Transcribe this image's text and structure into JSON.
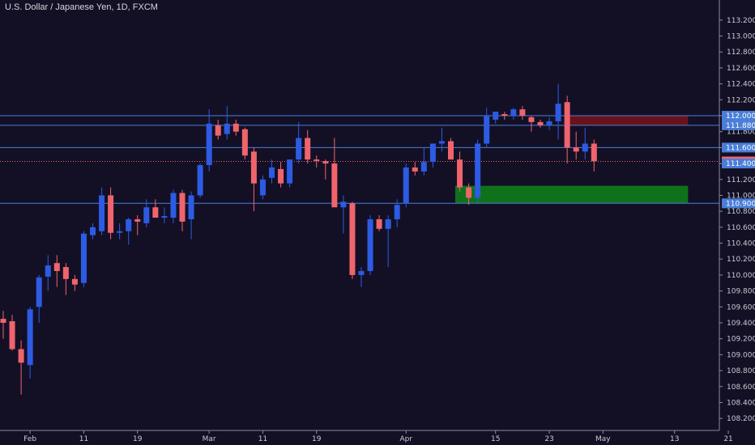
{
  "header": {
    "title": "U.S. Dollar / Japanese Yen, 1D, FXCM"
  },
  "colors": {
    "background": "#131026",
    "bullish": "#2d5be3",
    "bearish": "#f0646c",
    "level_line": "#4a7ed8",
    "resistance_zone": "#7a1219",
    "support_zone": "#0f7d1a",
    "axis_border": "#8a8da0",
    "current_price": "#f0646c"
  },
  "chart_data": {
    "type": "candlestick",
    "title": "U.S. Dollar / Japanese Yen, 1D, FXCM",
    "ylim": [
      108.1,
      113.3
    ],
    "price_ticks": [
      "113.200",
      "113.000",
      "112.800",
      "112.600",
      "112.400",
      "112.200",
      "112.000",
      "111.800",
      "111.600",
      "111.400",
      "111.200",
      "111.000",
      "110.800",
      "110.600",
      "110.400",
      "110.200",
      "110.000",
      "109.800",
      "109.600",
      "109.400",
      "109.200",
      "109.000",
      "108.800",
      "108.600",
      "108.400",
      "108.200"
    ],
    "time_ticks": [
      {
        "label": "Feb",
        "index": 3
      },
      {
        "label": "11",
        "index": 9
      },
      {
        "label": "19",
        "index": 15
      },
      {
        "label": "Mar",
        "index": 23
      },
      {
        "label": "11",
        "index": 29
      },
      {
        "label": "19",
        "index": 35
      },
      {
        "label": "Apr",
        "index": 45
      },
      {
        "label": "15",
        "index": 55
      },
      {
        "label": "23",
        "index": 61
      },
      {
        "label": "May",
        "index": 67
      },
      {
        "label": "13",
        "index": 75
      },
      {
        "label": "21",
        "index": 81
      }
    ],
    "candles": [
      {
        "o": 109.45,
        "h": 109.55,
        "l": 109.2,
        "c": 109.4
      },
      {
        "o": 109.42,
        "h": 109.5,
        "l": 109.05,
        "c": 109.07
      },
      {
        "o": 109.07,
        "h": 109.18,
        "l": 108.5,
        "c": 108.9
      },
      {
        "o": 108.87,
        "h": 109.6,
        "l": 108.7,
        "c": 109.57
      },
      {
        "o": 109.6,
        "h": 110.0,
        "l": 109.4,
        "c": 109.97
      },
      {
        "o": 109.98,
        "h": 110.25,
        "l": 109.8,
        "c": 110.12
      },
      {
        "o": 110.15,
        "h": 110.25,
        "l": 109.85,
        "c": 110.05
      },
      {
        "o": 110.1,
        "h": 110.15,
        "l": 109.75,
        "c": 109.95
      },
      {
        "o": 109.95,
        "h": 110.0,
        "l": 109.8,
        "c": 109.88
      },
      {
        "o": 109.9,
        "h": 110.55,
        "l": 109.85,
        "c": 110.52
      },
      {
        "o": 110.5,
        "h": 110.65,
        "l": 110.45,
        "c": 110.6
      },
      {
        "o": 110.55,
        "h": 111.1,
        "l": 110.5,
        "c": 111.0
      },
      {
        "o": 111.0,
        "h": 111.1,
        "l": 110.45,
        "c": 110.53
      },
      {
        "o": 110.53,
        "h": 110.65,
        "l": 110.45,
        "c": 110.55
      },
      {
        "o": 110.55,
        "h": 110.72,
        "l": 110.38,
        "c": 110.7
      },
      {
        "o": 110.7,
        "h": 110.75,
        "l": 110.5,
        "c": 110.67
      },
      {
        "o": 110.65,
        "h": 110.95,
        "l": 110.6,
        "c": 110.85
      },
      {
        "o": 110.85,
        "h": 110.95,
        "l": 110.75,
        "c": 110.72
      },
      {
        "o": 110.72,
        "h": 110.85,
        "l": 110.65,
        "c": 110.74
      },
      {
        "o": 110.72,
        "h": 111.07,
        "l": 110.65,
        "c": 111.03
      },
      {
        "o": 111.03,
        "h": 111.07,
        "l": 110.55,
        "c": 110.67
      },
      {
        "o": 110.7,
        "h": 111.05,
        "l": 110.45,
        "c": 111.0
      },
      {
        "o": 111.0,
        "h": 111.4,
        "l": 110.97,
        "c": 111.38
      },
      {
        "o": 111.38,
        "h": 112.08,
        "l": 111.3,
        "c": 111.9
      },
      {
        "o": 111.88,
        "h": 111.95,
        "l": 111.7,
        "c": 111.75
      },
      {
        "o": 111.77,
        "h": 112.12,
        "l": 111.7,
        "c": 111.9
      },
      {
        "o": 111.9,
        "h": 111.95,
        "l": 111.75,
        "c": 111.8
      },
      {
        "o": 111.83,
        "h": 111.85,
        "l": 111.45,
        "c": 111.5
      },
      {
        "o": 111.55,
        "h": 111.6,
        "l": 110.8,
        "c": 111.15
      },
      {
        "o": 111.0,
        "h": 111.25,
        "l": 110.95,
        "c": 111.2
      },
      {
        "o": 111.22,
        "h": 111.45,
        "l": 111.15,
        "c": 111.35
      },
      {
        "o": 111.33,
        "h": 111.42,
        "l": 111.1,
        "c": 111.15
      },
      {
        "o": 111.15,
        "h": 111.45,
        "l": 111.1,
        "c": 111.45
      },
      {
        "o": 111.45,
        "h": 111.92,
        "l": 111.4,
        "c": 111.72
      },
      {
        "o": 111.72,
        "h": 111.82,
        "l": 111.4,
        "c": 111.45
      },
      {
        "o": 111.45,
        "h": 111.5,
        "l": 111.35,
        "c": 111.43
      },
      {
        "o": 111.43,
        "h": 111.45,
        "l": 111.2,
        "c": 111.4
      },
      {
        "o": 111.4,
        "h": 111.72,
        "l": 110.9,
        "c": 110.85
      },
      {
        "o": 110.85,
        "h": 111.0,
        "l": 110.52,
        "c": 110.92
      },
      {
        "o": 110.9,
        "h": 110.92,
        "l": 109.95,
        "c": 110.0
      },
      {
        "o": 110.0,
        "h": 110.1,
        "l": 109.85,
        "c": 110.05
      },
      {
        "o": 110.05,
        "h": 110.75,
        "l": 110.0,
        "c": 110.7
      },
      {
        "o": 110.7,
        "h": 110.75,
        "l": 110.55,
        "c": 110.58
      },
      {
        "o": 110.58,
        "h": 110.75,
        "l": 110.1,
        "c": 110.7
      },
      {
        "o": 110.7,
        "h": 110.95,
        "l": 110.6,
        "c": 110.88
      },
      {
        "o": 110.9,
        "h": 111.4,
        "l": 110.85,
        "c": 111.35
      },
      {
        "o": 111.35,
        "h": 111.42,
        "l": 111.25,
        "c": 111.3
      },
      {
        "o": 111.3,
        "h": 111.6,
        "l": 111.25,
        "c": 111.42
      },
      {
        "o": 111.42,
        "h": 111.65,
        "l": 111.35,
        "c": 111.65
      },
      {
        "o": 111.65,
        "h": 111.85,
        "l": 111.55,
        "c": 111.68
      },
      {
        "o": 111.68,
        "h": 111.72,
        "l": 111.45,
        "c": 111.45
      },
      {
        "o": 111.45,
        "h": 111.55,
        "l": 111.05,
        "c": 111.1
      },
      {
        "o": 111.1,
        "h": 111.15,
        "l": 110.88,
        "c": 110.97
      },
      {
        "o": 110.97,
        "h": 111.7,
        "l": 110.9,
        "c": 111.65
      },
      {
        "o": 111.65,
        "h": 112.1,
        "l": 111.6,
        "c": 112.0
      },
      {
        "o": 111.95,
        "h": 112.05,
        "l": 111.9,
        "c": 112.05
      },
      {
        "o": 112.02,
        "h": 112.05,
        "l": 111.95,
        "c": 112.0
      },
      {
        "o": 112.0,
        "h": 112.1,
        "l": 111.95,
        "c": 112.08
      },
      {
        "o": 112.08,
        "h": 112.12,
        "l": 111.95,
        "c": 112.0
      },
      {
        "o": 111.98,
        "h": 112.0,
        "l": 111.8,
        "c": 111.92
      },
      {
        "o": 111.92,
        "h": 111.95,
        "l": 111.85,
        "c": 111.88
      },
      {
        "o": 111.88,
        "h": 111.98,
        "l": 111.82,
        "c": 111.93
      },
      {
        "o": 111.93,
        "h": 112.4,
        "l": 111.7,
        "c": 112.15
      },
      {
        "o": 112.17,
        "h": 112.25,
        "l": 111.4,
        "c": 111.6
      },
      {
        "o": 111.6,
        "h": 111.8,
        "l": 111.45,
        "c": 111.55
      },
      {
        "o": 111.55,
        "h": 111.85,
        "l": 111.45,
        "c": 111.65
      },
      {
        "o": 111.65,
        "h": 111.7,
        "l": 111.3,
        "c": 111.43
      }
    ],
    "horizontal_levels": [
      112.0,
      111.88,
      111.6,
      110.9
    ],
    "current_price": 111.426,
    "zones": [
      {
        "kind": "resistance",
        "from_index": 63,
        "to_index": 76.5,
        "low": 111.88,
        "high": 112.0
      },
      {
        "kind": "support",
        "from_index": 50.5,
        "to_index": 76.5,
        "low": 110.9,
        "high": 111.12
      }
    ],
    "price_tags": [
      {
        "label": "112.000",
        "value": 112.0,
        "color": "#4a7ed8"
      },
      {
        "label": "111.880",
        "value": 111.88,
        "color": "#4a7ed8"
      },
      {
        "label": "111.600",
        "value": 111.6,
        "color": "#4a7ed8"
      },
      {
        "label": "111.426",
        "value": 111.426,
        "color": "#f0646c"
      },
      {
        "label": "111.400",
        "value": 111.4,
        "color": "#4a7ed8"
      },
      {
        "label": "110.900",
        "value": 110.9,
        "color": "#4a7ed8"
      }
    ]
  }
}
